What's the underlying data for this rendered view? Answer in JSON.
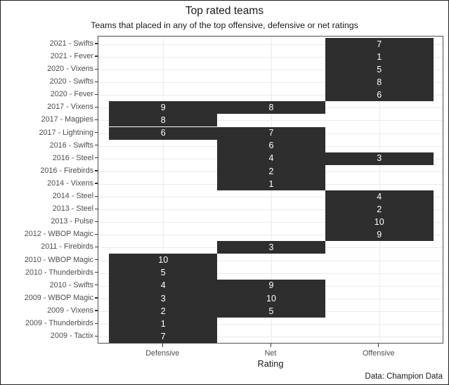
{
  "colors": {
    "tile_fill": "#2e2e2e",
    "tile_text": "#ffffff",
    "gridline": "#ebebeb",
    "panel_border": "#4f4f4f",
    "axis_text": "#4d4d4d",
    "tick": "#333333"
  },
  "chart_data": {
    "type": "heatmap",
    "title": "Top rated teams",
    "subtitle": "Teams that placed in any of the top offensive, defensive or net ratings",
    "caption": "Data: Champion Data",
    "x_axis_title": "Rating",
    "x_categories": [
      "Defensive",
      "Net",
      "Offensive"
    ],
    "value_domain": [
      1,
      10
    ],
    "legend": "none",
    "grid": "major-only",
    "rows": [
      {
        "label": "2021 - Swifts",
        "defensive": null,
        "net": null,
        "offensive": 7
      },
      {
        "label": "2021 - Fever",
        "defensive": null,
        "net": null,
        "offensive": 1
      },
      {
        "label": "2020 - Vixens",
        "defensive": null,
        "net": null,
        "offensive": 5
      },
      {
        "label": "2020 - Swifts",
        "defensive": null,
        "net": null,
        "offensive": 8
      },
      {
        "label": "2020 - Fever",
        "defensive": null,
        "net": null,
        "offensive": 6
      },
      {
        "label": "2017 - Vixens",
        "defensive": 9,
        "net": 8,
        "offensive": null
      },
      {
        "label": "2017 - Magpies",
        "defensive": 8,
        "net": null,
        "offensive": null
      },
      {
        "label": "2017 - Lightning",
        "defensive": 6,
        "net": 7,
        "offensive": null
      },
      {
        "label": "2016 - Swifts",
        "defensive": null,
        "net": 6,
        "offensive": null
      },
      {
        "label": "2016 - Steel",
        "defensive": null,
        "net": 4,
        "offensive": 3
      },
      {
        "label": "2016 - Firebirds",
        "defensive": null,
        "net": 2,
        "offensive": null
      },
      {
        "label": "2014 - Vixens",
        "defensive": null,
        "net": 1,
        "offensive": null
      },
      {
        "label": "2014 - Steel",
        "defensive": null,
        "net": null,
        "offensive": 4
      },
      {
        "label": "2013 - Steel",
        "defensive": null,
        "net": null,
        "offensive": 2
      },
      {
        "label": "2013 - Pulse",
        "defensive": null,
        "net": null,
        "offensive": 10
      },
      {
        "label": "2012 - WBOP Magic",
        "defensive": null,
        "net": null,
        "offensive": 9
      },
      {
        "label": "2011 - Firebirds",
        "defensive": null,
        "net": 3,
        "offensive": null
      },
      {
        "label": "2010 - WBOP Magic",
        "defensive": 10,
        "net": null,
        "offensive": null
      },
      {
        "label": "2010 - Thunderbirds",
        "defensive": 5,
        "net": null,
        "offensive": null
      },
      {
        "label": "2010 - Swifts",
        "defensive": 4,
        "net": 9,
        "offensive": null
      },
      {
        "label": "2009 - WBOP Magic",
        "defensive": 3,
        "net": 10,
        "offensive": null
      },
      {
        "label": "2009 - Vixens",
        "defensive": 2,
        "net": 5,
        "offensive": null
      },
      {
        "label": "2009 - Thunderbirds",
        "defensive": 1,
        "net": null,
        "offensive": null
      },
      {
        "label": "2009 - Tactix",
        "defensive": 7,
        "net": null,
        "offensive": null
      }
    ]
  }
}
